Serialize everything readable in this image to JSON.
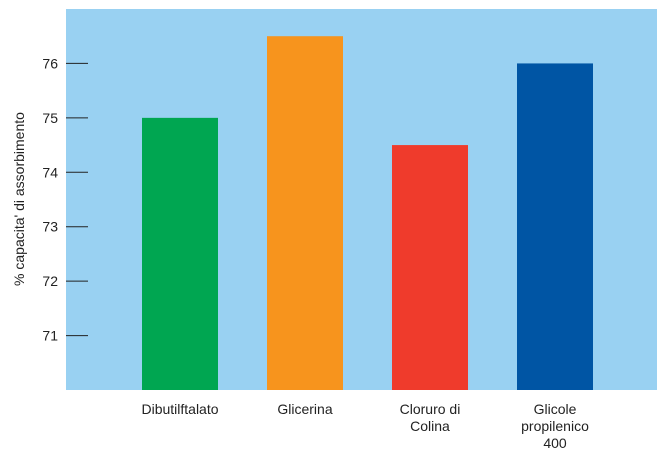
{
  "chart_data": {
    "type": "bar",
    "title": "",
    "xlabel": "",
    "ylabel": "% capacita' di assorbimento",
    "categories": [
      [
        "Dibutilftalato"
      ],
      [
        "Glicerina"
      ],
      [
        "Cloruro di",
        "Colina"
      ],
      [
        "Glicole",
        "propilenico",
        "400"
      ]
    ],
    "values": [
      75.0,
      76.5,
      74.5,
      76.0
    ],
    "colors": [
      "#00a651",
      "#f7941d",
      "#ef3b2c",
      "#0055a4"
    ],
    "yticks": [
      71,
      72,
      73,
      74,
      75,
      76
    ],
    "ylim": [
      70,
      77
    ],
    "background_color": "#99d1f2",
    "grid": false,
    "legend": "none"
  }
}
